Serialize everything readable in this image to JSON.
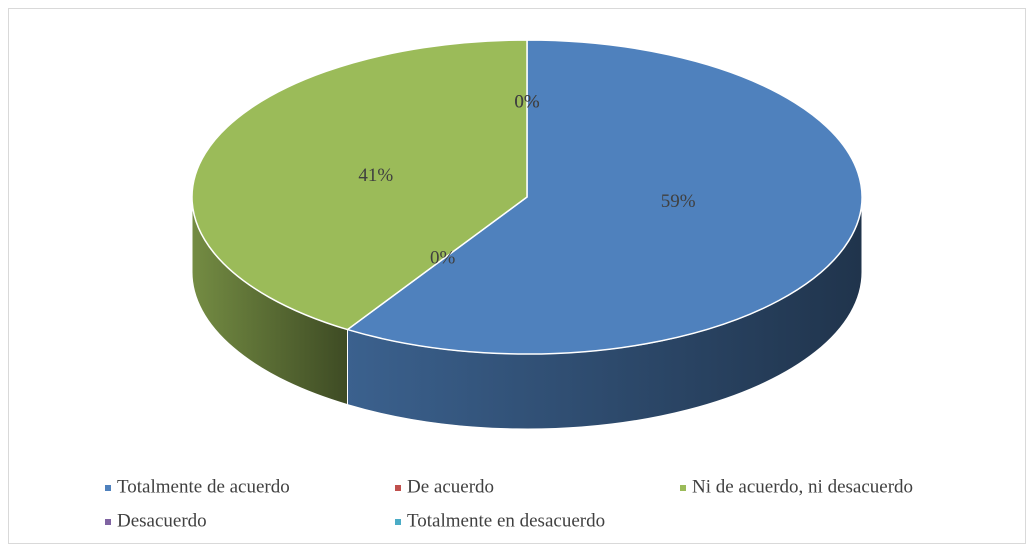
{
  "chart_data": {
    "type": "pie",
    "categories": [
      "Totalmente de acuerdo",
      "De acuerdo",
      "Ni de acuerdo, ni desacuerdo",
      "Desacuerdo",
      "Totalmente en desacuerdo"
    ],
    "values": [
      59,
      0,
      41,
      0,
      0
    ],
    "value_labels": [
      "59%",
      "0%",
      "41%",
      "0%",
      "0%"
    ],
    "colors": [
      "#4f81bd",
      "#c0504d",
      "#9bbb59",
      "#8064a2",
      "#4bacc6"
    ],
    "legend": "bottom"
  }
}
